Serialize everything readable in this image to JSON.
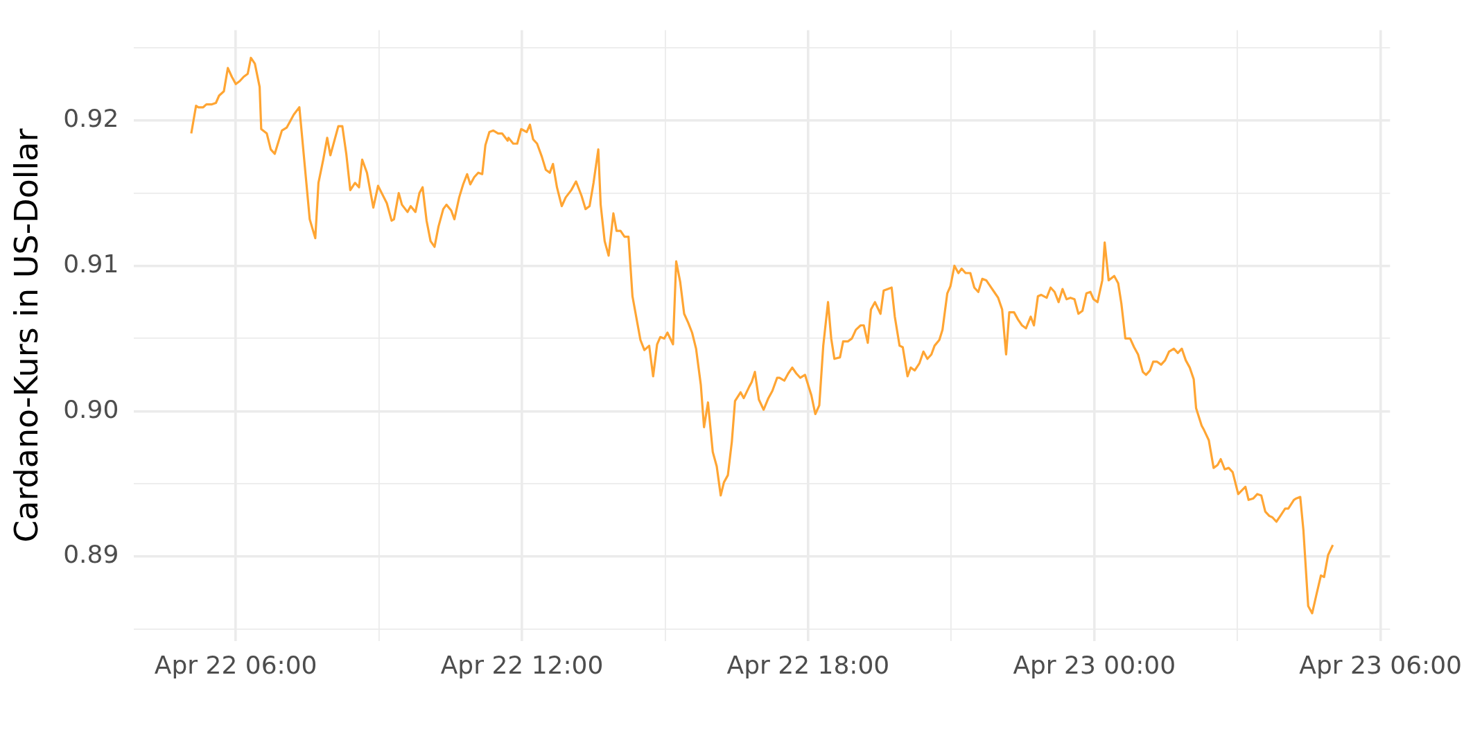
{
  "chart_data": {
    "type": "line",
    "ylabel": "Cardano-Kurs in US-Dollar",
    "color": "#ffa533",
    "x": [
      "--04-22T05:04",
      "--04-22T05:10",
      "--04-22T05:13",
      "--04-22T05:19",
      "--04-22T05:23",
      "--04-22T05:30",
      "--04-22T05:35",
      "--04-22T05:39",
      "--04-22T05:45",
      "--04-22T05:50",
      "--04-22T05:55",
      "--04-22T06:00",
      "--04-22T06:05",
      "--04-22T06:10",
      "--04-22T06:15",
      "--04-22T06:19",
      "--04-22T06:24",
      "--04-22T06:30",
      "--04-22T06:32",
      "--04-22T06:39",
      "--04-22T06:44",
      "--04-22T06:49",
      "--04-22T06:58",
      "--04-22T07:04",
      "--04-22T07:13",
      "--04-22T07:20",
      "--04-22T07:33",
      "--04-22T07:40",
      "--04-22T07:44",
      "--04-22T07:50",
      "--04-22T07:55",
      "--04-22T07:59",
      "--04-22T08:09",
      "--04-22T08:14",
      "--04-22T08:19",
      "--04-22T08:24",
      "--04-22T08:30",
      "--04-22T08:35",
      "--04-22T08:39",
      "--04-22T08:45",
      "--04-22T08:53",
      "--04-22T08:59",
      "--04-22T09:10",
      "--04-22T09:16",
      "--04-22T09:19",
      "--04-22T09:25",
      "--04-22T09:29",
      "--04-22T09:36",
      "--04-22T09:40",
      "--04-22T09:46",
      "--04-22T09:51",
      "--04-22T09:55",
      "--04-22T10:00",
      "--04-22T10:05",
      "--04-22T10:10",
      "--04-22T10:15",
      "--04-22T10:21",
      "--04-22T10:25",
      "--04-22T10:31",
      "--04-22T10:35",
      "--04-22T10:41",
      "--04-22T10:46",
      "--04-22T10:51",
      "--04-22T10:55",
      "--04-22T11:00",
      "--04-22T11:05",
      "--04-22T11:10",
      "--04-22T11:14",
      "--04-22T11:19",
      "--04-22T11:24",
      "--04-22T11:30",
      "--04-22T11:35",
      "--04-22T11:42",
      "--04-22T11:43",
      "--04-22T11:49",
      "--04-22T11:54",
      "--04-22T11:59",
      "--04-22T12:06",
      "--04-22T12:10",
      "--04-22T12:14",
      "--04-22T12:19",
      "--04-22T12:25",
      "--04-22T12:30",
      "--04-22T12:35",
      "--04-22T12:39",
      "--04-22T12:44",
      "--04-22T12:50",
      "--04-22T12:55",
      "--04-22T13:02",
      "--04-22T13:08",
      "--04-22T13:15",
      "--04-22T13:20",
      "--04-22T13:25",
      "--04-22T13:30",
      "--04-22T13:36",
      "--04-22T13:39",
      "--04-22T13:44",
      "--04-22T13:49",
      "--04-22T13:55",
      "--04-22T13:59",
      "--04-22T14:04",
      "--04-22T14:09",
      "--04-22T14:14",
      "--04-22T14:19",
      "--04-22T14:29",
      "--04-22T14:34",
      "--04-22T14:40",
      "--04-22T14:45",
      "--04-22T14:50",
      "--04-22T14:54",
      "--04-22T14:59",
      "--04-22T15:03",
      "--04-22T15:10",
      "--04-22T15:14",
      "--04-22T15:19",
      "--04-22T15:24",
      "--04-22T15:29",
      "--04-22T15:34",
      "--04-22T15:39",
      "--04-22T15:45",
      "--04-22T15:49",
      "--04-22T15:54",
      "--04-22T16:00",
      "--04-22T16:05",
      "--04-22T16:10",
      "--04-22T16:14",
      "--04-22T16:19",
      "--04-22T16:24",
      "--04-22T16:28",
      "--04-22T16:35",
      "--04-22T16:39",
      "--04-22T16:46",
      "--04-22T16:49",
      "--04-22T16:53",
      "--04-22T16:58",
      "--04-22T17:04",
      "--04-22T17:10",
      "--04-22T17:15",
      "--04-22T17:21",
      "--04-22T17:24",
      "--04-22T17:30",
      "--04-22T17:35",
      "--04-22T17:40",
      "--04-22T17:45",
      "--04-22T17:50",
      "--04-22T17:56",
      "--04-22T18:00",
      "--04-22T18:04",
      "--04-22T18:09",
      "--04-22T18:14",
      "--04-22T18:19",
      "--04-22T18:25",
      "--04-22T18:29",
      "--04-22T18:33",
      "--04-22T18:40",
      "--04-22T18:44",
      "--04-22T18:50",
      "--04-22T18:55",
      "--04-22T19:00",
      "--04-22T19:06",
      "--04-22T19:10",
      "--04-22T19:15",
      "--04-22T19:19",
      "--04-22T19:24",
      "--04-22T19:31",
      "--04-22T19:35",
      "--04-22T19:45",
      "--04-22T19:49",
      "--04-22T19:55",
      "--04-22T19:59",
      "--04-22T20:05",
      "--04-22T20:09",
      "--04-22T20:14",
      "--04-22T20:20",
      "--04-22T20:25",
      "--04-22T20:30",
      "--04-22T20:35",
      "--04-22T20:39",
      "--04-22T20:45",
      "--04-22T20:49",
      "--04-22T20:55",
      "--04-22T20:59",
      "--04-22T21:04",
      "--04-22T21:09",
      "--04-22T21:13",
      "--04-22T21:18",
      "--04-22T21:24",
      "--04-22T21:29",
      "--04-22T21:34",
      "--04-22T21:39",
      "--04-22T21:44",
      "--04-22T21:49",
      "--04-22T21:54",
      "--04-22T21:59",
      "--04-22T22:04",
      "--04-22T22:09",
      "--04-22T22:13",
      "--04-22T22:19",
      "--04-22T22:24",
      "--04-22T22:29",
      "--04-22T22:34",
      "--04-22T22:40",
      "--04-22T22:44",
      "--04-22T22:49",
      "--04-22T22:53",
      "--04-22T23:00",
      "--04-22T23:05",
      "--04-22T23:10",
      "--04-22T23:15",
      "--04-22T23:20",
      "--04-22T23:25",
      "--04-22T23:30",
      "--04-22T23:35",
      "--04-22T23:40",
      "--04-22T23:45",
      "--04-22T23:50",
      "--04-22T23:55",
      "--04-22T23:59",
      "--04-23T00:04",
      "--04-23T00:10",
      "--04-23T00:13",
      "--04-23T00:18",
      "--04-23T00:25",
      "--04-23T00:30",
      "--04-23T00:34",
      "--04-23T00:39",
      "--04-23T00:45",
      "--04-23T00:50",
      "--04-23T00:55",
      "--04-23T01:01",
      "--04-23T01:05",
      "--04-23T01:10",
      "--04-23T01:14",
      "--04-23T01:19",
      "--04-23T01:24",
      "--04-23T01:29",
      "--04-23T01:34",
      "--04-23T01:40",
      "--04-23T01:45",
      "--04-23T01:50",
      "--04-23T01:55",
      "--04-23T02:00",
      "--04-23T02:05",
      "--04-23T02:08",
      "--04-23T02:15",
      "--04-23T02:18",
      "--04-23T02:24",
      "--04-23T02:30",
      "--04-23T02:35",
      "--04-23T02:39",
      "--04-23T02:44",
      "--04-23T02:49",
      "--04-23T02:54",
      "--04-23T03:01",
      "--04-23T03:10",
      "--04-23T03:14",
      "--04-23T03:20",
      "--04-23T03:25",
      "--04-23T03:30",
      "--04-23T03:35",
      "--04-23T03:40",
      "--04-23T03:44",
      "--04-23T03:49",
      "--04-23T03:54",
      "--04-23T04:00",
      "--04-23T04:04",
      "--04-23T04:11",
      "--04-23T04:14",
      "--04-23T04:19",
      "--04-23T04:23",
      "--04-23T04:29",
      "--04-23T04:34",
      "--04-23T04:39",
      "--04-23T04:45",
      "--04-23T04:49",
      "--04-23T04:54",
      "--04-23T05:00"
    ],
    "values": [
      0.9191,
      0.921,
      0.9209,
      0.9209,
      0.9211,
      0.9211,
      0.9212,
      0.9217,
      0.922,
      0.9236,
      0.923,
      0.9225,
      0.9227,
      0.923,
      0.9232,
      0.9243,
      0.9239,
      0.9223,
      0.9194,
      0.9191,
      0.918,
      0.9177,
      0.9193,
      0.9195,
      0.9204,
      0.9209,
      0.9132,
      0.9119,
      0.9157,
      0.9173,
      0.9188,
      0.9176,
      0.9196,
      0.9196,
      0.9177,
      0.9152,
      0.9157,
      0.9154,
      0.9173,
      0.9164,
      0.914,
      0.9155,
      0.9143,
      0.9131,
      0.9132,
      0.915,
      0.9142,
      0.9137,
      0.9141,
      0.9137,
      0.915,
      0.9154,
      0.9131,
      0.9117,
      0.9113,
      0.9127,
      0.9139,
      0.9142,
      0.9138,
      0.9132,
      0.9147,
      0.9156,
      0.9163,
      0.9156,
      0.9161,
      0.9164,
      0.9163,
      0.9183,
      0.9192,
      0.9193,
      0.9191,
      0.9191,
      0.9186,
      0.9188,
      0.9184,
      0.9184,
      0.9194,
      0.9192,
      0.9197,
      0.9187,
      0.9184,
      0.9175,
      0.9166,
      0.9164,
      0.917,
      0.9154,
      0.9141,
      0.9147,
      0.9152,
      0.9158,
      0.9148,
      0.9139,
      0.9141,
      0.9157,
      0.918,
      0.9142,
      0.9117,
      0.9107,
      0.9136,
      0.9124,
      0.9124,
      0.912,
      0.912,
      0.9079,
      0.9049,
      0.9042,
      0.9045,
      0.9024,
      0.9046,
      0.9051,
      0.905,
      0.9054,
      0.9046,
      0.9103,
      0.9089,
      0.9067,
      0.9061,
      0.9054,
      0.9043,
      0.9018,
      0.8989,
      0.9006,
      0.8972,
      0.8962,
      0.8942,
      0.8951,
      0.8956,
      0.8979,
      0.9007,
      0.9013,
      0.9009,
      0.9017,
      0.902,
      0.9027,
      0.9008,
      0.9001,
      0.9009,
      0.9014,
      0.9023,
      0.9023,
      0.9021,
      0.9026,
      0.903,
      0.9026,
      0.9023,
      0.9025,
      0.9018,
      0.9011,
      0.8998,
      0.9004,
      0.9045,
      0.9075,
      0.905,
      0.9036,
      0.9037,
      0.9048,
      0.9048,
      0.905,
      0.9056,
      0.9059,
      0.9059,
      0.9047,
      0.907,
      0.9075,
      0.9067,
      0.9083,
      0.9085,
      0.9065,
      0.9045,
      0.9044,
      0.9024,
      0.903,
      0.9028,
      0.9033,
      0.9041,
      0.9036,
      0.9039,
      0.9045,
      0.9049,
      0.9056,
      0.9081,
      0.9086,
      0.91,
      0.9095,
      0.9098,
      0.9095,
      0.9095,
      0.9085,
      0.9082,
      0.9091,
      0.909,
      0.9086,
      0.9082,
      0.9078,
      0.907,
      0.9039,
      0.9068,
      0.9068,
      0.9063,
      0.9059,
      0.9057,
      0.9065,
      0.9059,
      0.9079,
      0.908,
      0.9078,
      0.9085,
      0.9082,
      0.9075,
      0.9084,
      0.9077,
      0.9078,
      0.9077,
      0.9067,
      0.9069,
      0.9081,
      0.9082,
      0.9077,
      0.9075,
      0.909,
      0.9116,
      0.909,
      0.9093,
      0.9088,
      0.9074,
      0.905,
      0.905,
      0.9044,
      0.9039,
      0.9027,
      0.9025,
      0.9028,
      0.9034,
      0.9034,
      0.9032,
      0.9035,
      0.9041,
      0.9043,
      0.904,
      0.9043,
      0.9035,
      0.903,
      0.9022,
      0.9002,
      0.899,
      0.8987,
      0.898,
      0.8961,
      0.8963,
      0.8967,
      0.896,
      0.8961,
      0.8958,
      0.8943,
      0.8948,
      0.8939,
      0.894,
      0.8943,
      0.8942,
      0.8931,
      0.8928,
      0.8927,
      0.8924,
      0.8928,
      0.8933,
      0.8933,
      0.8939,
      0.894,
      0.8941,
      0.8918,
      0.8866,
      0.8861,
      0.8873,
      0.8887,
      0.8886,
      0.8901,
      0.8908
    ],
    "xlim": [
      "--04-22T03:52",
      "--04-23T06:12"
    ],
    "xticks": [
      {
        "value": "--04-22T06:00",
        "label": "Apr 22 06:00"
      },
      {
        "value": "--04-22T09:00",
        "label": null
      },
      {
        "value": "--04-22T12:00",
        "label": "Apr 22 12:00"
      },
      {
        "value": "--04-22T15:00",
        "label": null
      },
      {
        "value": "--04-22T18:00",
        "label": "Apr 22 18:00"
      },
      {
        "value": "--04-22T21:00",
        "label": null
      },
      {
        "value": "--04-23T00:00",
        "label": "Apr 23 00:00"
      },
      {
        "value": "--04-23T03:00",
        "label": null
      },
      {
        "value": "--04-23T06:00",
        "label": "Apr 23 06:00"
      }
    ],
    "ylim": [
      0.8842,
      0.9262
    ],
    "yticks": [
      {
        "value": 0.885,
        "label": null
      },
      0.89,
      {
        "value": 0.895,
        "label": null
      },
      {
        "value": 0.9,
        "label": "0.90"
      },
      {
        "value": 0.905,
        "label": null
      },
      0.91,
      {
        "value": 0.915,
        "label": null
      },
      0.92,
      {
        "value": 0.925,
        "label": null
      }
    ],
    "grid": true
  }
}
